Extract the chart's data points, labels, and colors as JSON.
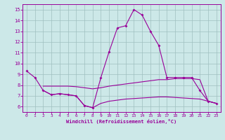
{
  "xlabel": "Windchill (Refroidissement éolien,°C)",
  "background_color": "#cce8e8",
  "grid_color": "#9fbfbf",
  "line_color": "#990099",
  "xlim": [
    -0.5,
    23.5
  ],
  "ylim": [
    5.5,
    15.5
  ],
  "yticks": [
    6,
    7,
    8,
    9,
    10,
    11,
    12,
    13,
    14,
    15
  ],
  "xticks": [
    0,
    1,
    2,
    3,
    4,
    5,
    6,
    7,
    8,
    9,
    10,
    11,
    12,
    13,
    14,
    15,
    16,
    17,
    18,
    19,
    20,
    21,
    22,
    23
  ],
  "curve1_x": [
    0,
    1,
    2,
    3,
    4,
    5,
    6,
    7,
    8,
    9,
    10,
    11,
    12,
    13,
    14,
    15,
    16,
    17,
    18,
    19,
    20,
    21,
    22,
    23
  ],
  "curve1_y": [
    9.3,
    8.7,
    7.5,
    7.1,
    7.2,
    7.1,
    7.0,
    6.1,
    5.9,
    8.7,
    11.1,
    13.3,
    13.5,
    15.0,
    14.5,
    13.0,
    11.7,
    8.7,
    8.7,
    8.7,
    8.7,
    7.5,
    6.5,
    6.3
  ],
  "curve2_x": [
    2,
    3,
    4,
    5,
    6,
    7,
    8,
    9,
    10,
    11,
    12,
    13,
    14,
    15,
    16,
    17,
    18,
    19,
    20,
    21,
    22,
    23
  ],
  "curve2_y": [
    7.9,
    7.9,
    7.9,
    7.9,
    7.85,
    7.75,
    7.65,
    7.75,
    7.9,
    8.0,
    8.1,
    8.2,
    8.3,
    8.4,
    8.5,
    8.5,
    8.6,
    8.6,
    8.6,
    8.5,
    6.5,
    6.3
  ],
  "curve3_x": [
    2,
    3,
    4,
    5,
    6,
    7,
    8,
    9,
    10,
    11,
    12,
    13,
    14,
    15,
    16,
    17,
    18,
    19,
    20,
    21,
    22,
    23
  ],
  "curve3_y": [
    7.5,
    7.1,
    7.2,
    7.1,
    7.0,
    6.1,
    5.9,
    6.3,
    6.5,
    6.6,
    6.7,
    6.75,
    6.8,
    6.85,
    6.9,
    6.9,
    6.85,
    6.8,
    6.75,
    6.7,
    6.5,
    6.3
  ]
}
